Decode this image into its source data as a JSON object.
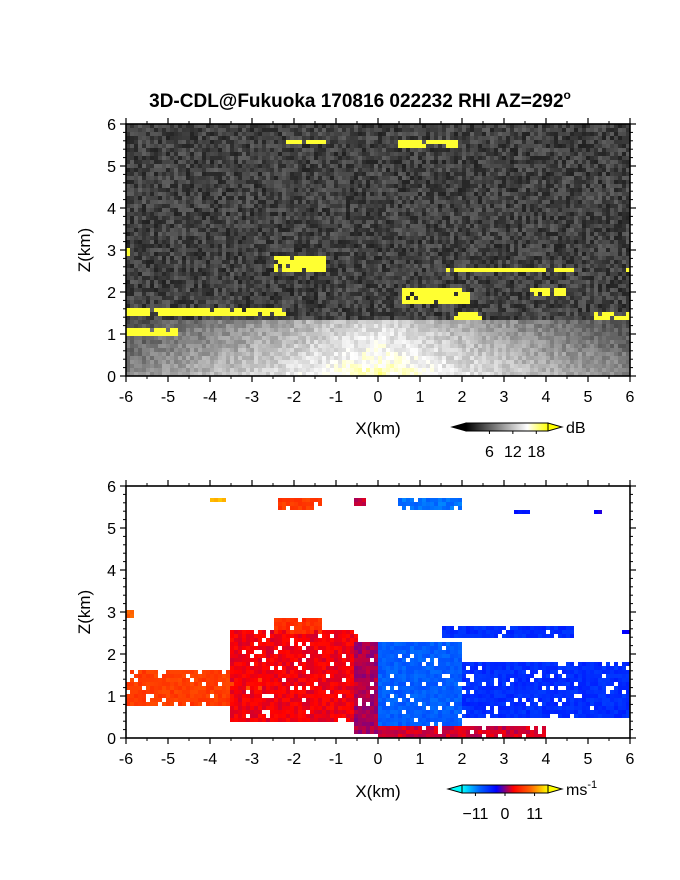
{
  "figure": {
    "title_main": "3D-CDL@Fukuoka 170816 022232 RHI AZ=292",
    "title_degree": "o"
  },
  "chart_data": [
    {
      "type": "heatmap",
      "quantity": "backscatter",
      "xlabel": "X(km)",
      "ylabel": "Z(km)",
      "xlim": [
        -6,
        6
      ],
      "ylim": [
        0,
        6
      ],
      "xticks": [
        "-6",
        "-5",
        "-4",
        "-3",
        "-2",
        "-1",
        "0",
        "1",
        "2",
        "3",
        "4",
        "5",
        "6"
      ],
      "yticks": [
        "0",
        "1",
        "2",
        "3",
        "4",
        "5",
        "6"
      ],
      "colorbar": {
        "unit": "dB",
        "ticks": [
          "6",
          "12",
          "18"
        ],
        "tick_values": [
          6,
          12,
          18
        ],
        "range": [
          0,
          21
        ],
        "colors": [
          "#000000",
          "#555555",
          "#aaaaaa",
          "#ffffff",
          "#ffff00"
        ]
      },
      "features": [
        {
          "type": "layer",
          "xr": [
            -6,
            6
          ],
          "zr": [
            0,
            1.3
          ],
          "level": 12
        },
        {
          "type": "strong",
          "xr": [
            -6,
            -2.2
          ],
          "zr": [
            1.4,
            1.65
          ]
        },
        {
          "type": "strong",
          "xr": [
            -2.5,
            -1.2
          ],
          "zr": [
            2.5,
            2.9
          ]
        },
        {
          "type": "strong",
          "xr": [
            1.6,
            4.7
          ],
          "zr": [
            2.45,
            2.6
          ]
        },
        {
          "type": "strong",
          "xr": [
            0.6,
            2.2
          ],
          "zr": [
            1.7,
            2.1
          ]
        },
        {
          "type": "strong",
          "xr": [
            1.8,
            2.5
          ],
          "zr": [
            1.35,
            1.55
          ]
        },
        {
          "type": "strong",
          "xr": [
            3.5,
            4.5
          ],
          "zr": [
            1.9,
            2.1
          ]
        },
        {
          "type": "strong",
          "xr": [
            5.1,
            6
          ],
          "zr": [
            1.3,
            1.5
          ]
        },
        {
          "type": "strong",
          "xr": [
            -6,
            -4.8
          ],
          "zr": [
            0.95,
            1.1
          ]
        },
        {
          "type": "strong",
          "xr": [
            0.5,
            1.9
          ],
          "zr": [
            5.45,
            5.6
          ]
        },
        {
          "type": "strong",
          "xr": [
            -2.2,
            -1.2
          ],
          "zr": [
            5.5,
            5.6
          ]
        },
        {
          "type": "strong",
          "xr": [
            -6,
            -5.9
          ],
          "zr": [
            2.9,
            3.0
          ]
        },
        {
          "type": "strong",
          "xr": [
            5.8,
            6
          ],
          "zr": [
            2.5,
            2.6
          ]
        }
      ]
    },
    {
      "type": "heatmap",
      "quantity": "doppler velocity",
      "xlabel": "X(km)",
      "ylabel": "Z(km)",
      "xlim": [
        -6,
        6
      ],
      "ylim": [
        0,
        6
      ],
      "xticks": [
        "-6",
        "-5",
        "-4",
        "-3",
        "-2",
        "-1",
        "0",
        "1",
        "2",
        "3",
        "4",
        "5",
        "6"
      ],
      "yticks": [
        "0",
        "1",
        "2",
        "3",
        "4",
        "5",
        "6"
      ],
      "colorbar": {
        "unit": "ms",
        "unit_exponent": "-1",
        "ticks": [
          "−11",
          "0",
          "11"
        ],
        "tick_values": [
          -11,
          0,
          11
        ],
        "range": [
          -16,
          16
        ],
        "colors": [
          "#00ffff",
          "#0066ff",
          "#0000ff",
          "#ff0000",
          "#ff6600",
          "#ffff00"
        ]
      },
      "features": [
        {
          "type": "region",
          "xr": [
            -6,
            -2.8
          ],
          "zr": [
            0.8,
            1.6
          ],
          "v": 7
        },
        {
          "type": "region",
          "xr": [
            -3.5,
            -0.5
          ],
          "zr": [
            0.4,
            2.6
          ],
          "v": 3
        },
        {
          "type": "region",
          "xr": [
            -2.5,
            -1.3
          ],
          "zr": [
            2.5,
            2.9
          ],
          "v": 6
        },
        {
          "type": "region",
          "xr": [
            -0.6,
            0.1
          ],
          "zr": [
            0.1,
            2.3
          ],
          "v": 1
        },
        {
          "type": "region",
          "xr": [
            0.0,
            2.0
          ],
          "zr": [
            0.3,
            2.3
          ],
          "v": -9
        },
        {
          "type": "region",
          "xr": [
            2.0,
            6.0
          ],
          "zr": [
            0.5,
            1.8
          ],
          "v": -6
        },
        {
          "type": "region",
          "xr": [
            1.5,
            4.7
          ],
          "zr": [
            2.4,
            2.7
          ],
          "v": -6
        },
        {
          "type": "region",
          "xr": [
            0.0,
            4.0
          ],
          "zr": [
            0.0,
            0.3
          ],
          "v": 2
        },
        {
          "type": "region",
          "xr": [
            0.5,
            2.0
          ],
          "zr": [
            5.4,
            5.7
          ],
          "v": -10
        },
        {
          "type": "region",
          "xr": [
            -2.4,
            -1.3
          ],
          "zr": [
            5.45,
            5.7
          ],
          "v": 7
        },
        {
          "type": "region",
          "xr": [
            -4.0,
            -3.6
          ],
          "zr": [
            5.6,
            5.7
          ],
          "v": 13
        },
        {
          "type": "region",
          "xr": [
            -0.6,
            -0.3
          ],
          "zr": [
            5.5,
            5.7
          ],
          "v": 2
        },
        {
          "type": "region",
          "xr": [
            3.2,
            3.6
          ],
          "zr": [
            5.3,
            5.4
          ],
          "v": -4
        },
        {
          "type": "region",
          "xr": [
            5.1,
            5.3
          ],
          "zr": [
            5.3,
            5.4
          ],
          "v": -3
        },
        {
          "type": "region",
          "xr": [
            5.8,
            6.0
          ],
          "zr": [
            2.45,
            2.6
          ],
          "v": -4
        },
        {
          "type": "region",
          "xr": [
            -6.0,
            -5.8
          ],
          "zr": [
            2.85,
            3.0
          ],
          "v": 9
        }
      ]
    }
  ]
}
